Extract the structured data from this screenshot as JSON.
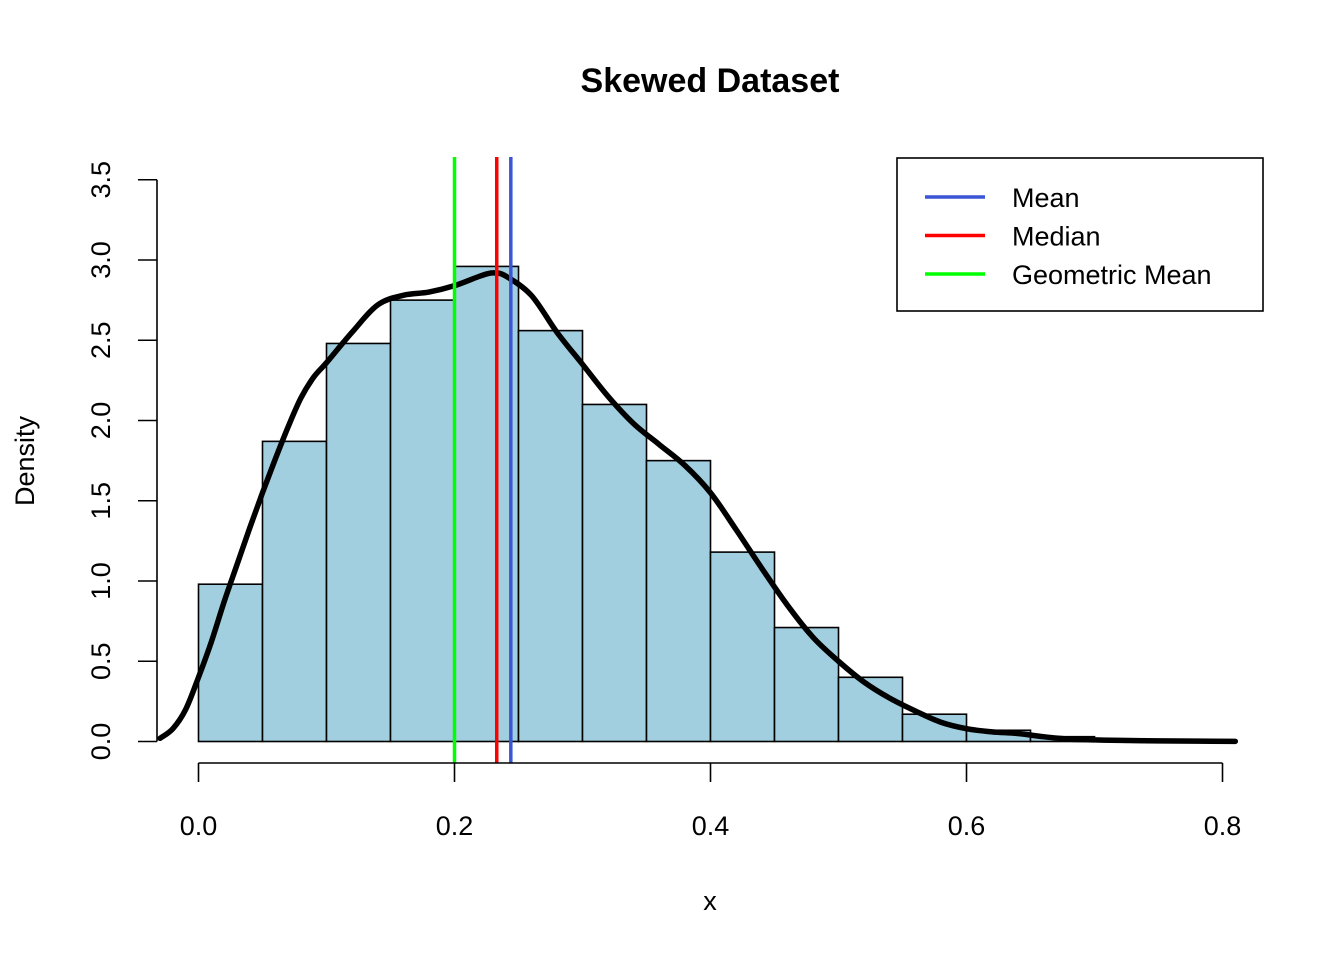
{
  "chart_data": {
    "type": "bar",
    "title": "Skewed Dataset",
    "xlabel": "x",
    "ylabel": "Density",
    "xlim": [
      -0.03,
      0.81
    ],
    "ylim": [
      0,
      3.5
    ],
    "x_ticks": [
      0.0,
      0.2,
      0.4,
      0.6,
      0.8
    ],
    "x_tick_labels": [
      "0.0",
      "0.2",
      "0.4",
      "0.6",
      "0.8"
    ],
    "y_ticks": [
      0.0,
      0.5,
      1.0,
      1.5,
      2.0,
      2.5,
      3.0,
      3.5
    ],
    "y_tick_labels": [
      "0.0",
      "0.5",
      "1.0",
      "1.5",
      "2.0",
      "2.5",
      "3.0",
      "3.5"
    ],
    "grid": false,
    "bar_color": "#a1cfe0",
    "histogram": {
      "bin_edges": [
        0.0,
        0.05,
        0.1,
        0.15,
        0.2,
        0.25,
        0.3,
        0.35,
        0.4,
        0.45,
        0.5,
        0.55,
        0.6,
        0.65,
        0.7,
        0.75,
        0.8
      ],
      "densities": [
        0.98,
        1.87,
        2.48,
        2.75,
        2.96,
        2.56,
        2.1,
        1.75,
        1.18,
        0.71,
        0.4,
        0.17,
        0.07,
        0.03,
        0.01,
        0.005
      ]
    },
    "density_curve": {
      "color": "#000000",
      "x": [
        -0.03,
        -0.02,
        -0.01,
        0.0,
        0.01,
        0.02,
        0.03,
        0.04,
        0.05,
        0.06,
        0.07,
        0.08,
        0.09,
        0.1,
        0.12,
        0.14,
        0.16,
        0.18,
        0.2,
        0.22,
        0.23,
        0.24,
        0.26,
        0.28,
        0.3,
        0.32,
        0.34,
        0.36,
        0.38,
        0.4,
        0.42,
        0.44,
        0.46,
        0.48,
        0.5,
        0.52,
        0.54,
        0.56,
        0.58,
        0.6,
        0.62,
        0.64,
        0.66,
        0.68,
        0.7,
        0.72,
        0.75,
        0.78,
        0.81
      ],
      "y": [
        0.02,
        0.08,
        0.2,
        0.4,
        0.62,
        0.87,
        1.1,
        1.33,
        1.55,
        1.76,
        1.96,
        2.14,
        2.27,
        2.36,
        2.55,
        2.72,
        2.78,
        2.8,
        2.84,
        2.9,
        2.92,
        2.9,
        2.78,
        2.55,
        2.35,
        2.15,
        1.98,
        1.85,
        1.72,
        1.55,
        1.32,
        1.08,
        0.85,
        0.65,
        0.5,
        0.37,
        0.27,
        0.19,
        0.12,
        0.08,
        0.06,
        0.05,
        0.03,
        0.015,
        0.01,
        0.007,
        0.004,
        0.002,
        0.001
      ]
    },
    "vertical_lines": [
      {
        "name": "Mean",
        "x": 0.244,
        "color": "#3a56d4"
      },
      {
        "name": "Median",
        "x": 0.233,
        "color": "#ff0000"
      },
      {
        "name": "Geometric Mean",
        "x": 0.2,
        "color": "#00ff00"
      }
    ],
    "legend": {
      "placement": "top-right",
      "entries": [
        {
          "label": "Mean",
          "color": "#3a56d4"
        },
        {
          "label": "Median",
          "color": "#ff0000"
        },
        {
          "label": "Geometric Mean",
          "color": "#00ff00"
        }
      ]
    }
  }
}
